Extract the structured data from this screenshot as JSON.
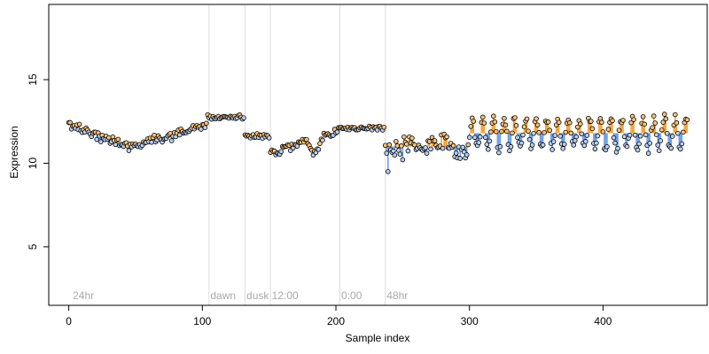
{
  "chart_data": {
    "type": "scatter",
    "title": "",
    "xlabel": "Sample index",
    "ylabel": "Expression",
    "xlim": [
      -15,
      478
    ],
    "ylim": [
      1.5,
      19.5
    ],
    "xticks": [
      0,
      100,
      200,
      300,
      400
    ],
    "yticks": [
      5,
      10,
      15
    ],
    "grid": false,
    "colors": {
      "above": "#f2a53a",
      "below": "#6f9fe6",
      "point_fill": "#d9d9d9",
      "point_edge": "#000000",
      "annotation": "#aaaaaa",
      "vline": "#dddddd"
    },
    "annotations": [
      {
        "label": "24hr",
        "x": 3
      },
      {
        "label": "dawn",
        "x": 106
      },
      {
        "label": "dusk",
        "x": 133
      },
      {
        "label": "12:00",
        "x": 152
      },
      {
        "label": "0:00",
        "x": 204
      },
      {
        "label": "48hr",
        "x": 238
      }
    ],
    "segments": [
      {
        "x_start": 0,
        "x_end": 104,
        "shape": "drift",
        "params": {
          "y0": 12.3,
          "y_mid": 11.0,
          "x_mid": 45,
          "y1": 12.3
        }
      },
      {
        "x_start": 104,
        "x_end": 132,
        "shape": "flat",
        "params": {
          "y": 12.75
        }
      },
      {
        "x_start": 132,
        "x_end": 151,
        "shape": "flat",
        "params": {
          "y": 11.6
        }
      },
      {
        "x_start": 151,
        "x_end": 202,
        "shape": "ramp",
        "params": {
          "y0": 10.6,
          "y1": 11.9,
          "dip_at": 184,
          "dip": 10.7
        }
      },
      {
        "x_start": 202,
        "x_end": 237,
        "shape": "flat",
        "params": {
          "y": 12.1
        }
      },
      {
        "x_start": 237,
        "x_end": 300,
        "shape": "noisy",
        "params": {
          "y": 11.0
        }
      },
      {
        "x_start": 300,
        "x_end": 464,
        "shape": "oscillating",
        "params": {
          "y": 11.8,
          "amp": 0.9,
          "period": 8
        }
      }
    ],
    "n_points": 465,
    "y_range_observed": [
      9.4,
      13.3
    ]
  }
}
